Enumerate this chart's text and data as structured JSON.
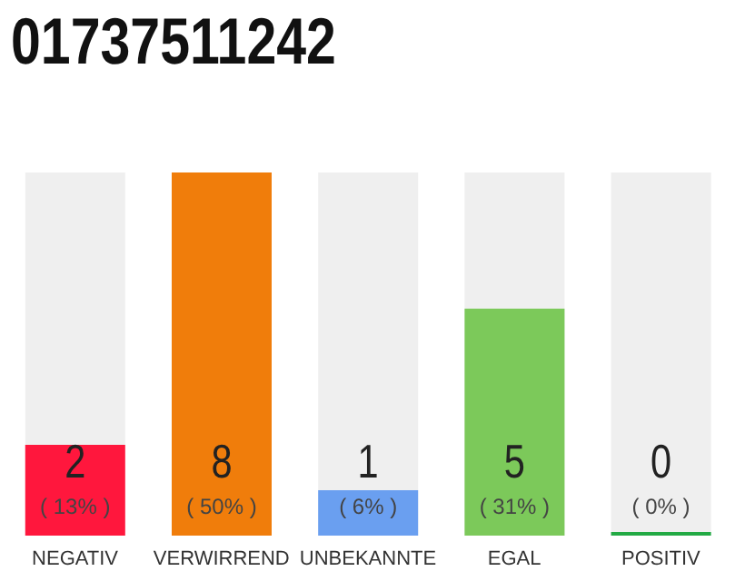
{
  "chart_data": {
    "type": "bar",
    "title": "01737511242",
    "categories": [
      "NEGATIV",
      "VERWIRREND",
      "UNBEKANNTE",
      "EGAL",
      "POSITIV"
    ],
    "values": [
      2,
      8,
      1,
      5,
      0
    ],
    "colors": [
      "#ff173d",
      "#f07d0b",
      "#6a9ff0",
      "#7cc95a",
      "#22aa44"
    ],
    "value_labels": [
      "2\n( 13% )",
      "8\n( 50% )",
      "1\n( 6% )",
      "5\n( 31% )",
      "0\n( 0% )"
    ],
    "tick_labels": "x",
    "grid": false,
    "legend": false
  }
}
